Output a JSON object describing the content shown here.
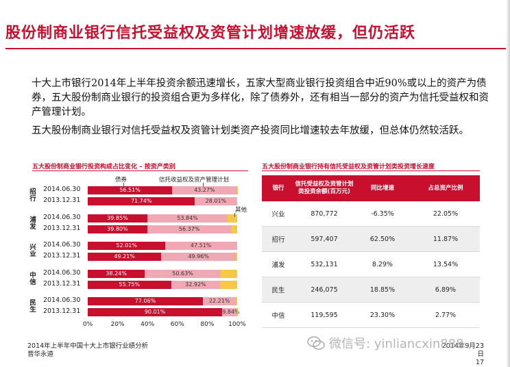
{
  "slide": {
    "title": "股份制商业银行信托受益权及资管计划增速放缓，但仍活跃",
    "paragraph1": "十大上市银行2014年上半年投资余额迅速增长，五家大型商业银行投资组合中近90%或以上的资产为债券，五大股份制商业银行的投资组合更为多样化，除了债券外，还有相当一部分的资产为信托受益权和资产管理计划。",
    "paragraph2": "五大股份制商业银行对信托受益权及资管计划类资产投资同比增速较去年放缓，但总体仍然较活跃。",
    "footer_line1": "2014年上半年中国十大上市银行业绩分析",
    "footer_line2": "普华永道",
    "date": "2014年9月23日",
    "page_number": "17",
    "watermark": "微信号: yinliancxin888"
  },
  "colors": {
    "accent": "#c8102e",
    "debt": "#c8102e",
    "trust": "#f0a8b4",
    "other": "#f7c844"
  },
  "chart_data": {
    "type": "bar",
    "orientation": "horizontal-stacked",
    "title": "五大股份制商业银行投资构成占比变化 – 按资产类别",
    "series_names": [
      "债券",
      "信托收益权及资产管理计划",
      "其他"
    ],
    "xlim": [
      0,
      100
    ],
    "x_ticks": [
      "0%",
      "20%",
      "40%",
      "60%",
      "80%",
      "100%"
    ],
    "groups": [
      {
        "bank": "招行",
        "rows": [
          {
            "date": "2014.06.30",
            "values": [
              56.51,
              43.27,
              0.22
            ],
            "labels": [
              "56.51%",
              "43.27%",
              ""
            ]
          },
          {
            "date": "2013.12.31",
            "values": [
              71.74,
              28.01,
              0.25
            ],
            "labels": [
              "71.74%",
              "28.01%",
              ""
            ]
          }
        ]
      },
      {
        "bank": "浦发",
        "rows": [
          {
            "date": "2014.06.30",
            "values": [
              39.85,
              53.84,
              6.31
            ],
            "labels": [
              "39.85%",
              "53.84%",
              ""
            ]
          },
          {
            "date": "2013.12.31",
            "values": [
              39.8,
              56.37,
              3.83
            ],
            "labels": [
              "39.80%",
              "56.37%",
              ""
            ]
          }
        ]
      },
      {
        "bank": "兴业",
        "rows": [
          {
            "date": "2014.06.30",
            "values": [
              52.01,
              47.51,
              0.48
            ],
            "labels": [
              "52.01%",
              "47.51%",
              ""
            ]
          },
          {
            "date": "2013.12.31",
            "values": [
              49.21,
              49.96,
              0.83
            ],
            "labels": [
              "49.21%",
              "49.96%",
              ""
            ]
          }
        ]
      },
      {
        "bank": "中信",
        "rows": [
          {
            "date": "2014.06.30",
            "values": [
              38.24,
              50.63,
              11.13
            ],
            "labels": [
              "38.24%",
              "50.63%",
              ""
            ]
          },
          {
            "date": "2013.12.31",
            "values": [
              55.75,
              32.92,
              11.33
            ],
            "labels": [
              "55.75%",
              "32.92%",
              ""
            ]
          }
        ]
      },
      {
        "bank": "民生",
        "rows": [
          {
            "date": "2014.06.30",
            "values": [
              77.06,
              22.21,
              0.73
            ],
            "labels": [
              "77.06%",
              "22.21%",
              ""
            ]
          },
          {
            "date": "2013.12.31",
            "values": [
              90.01,
              9.84,
              0.15
            ],
            "labels": [
              "90.01%",
              "9.84%",
              ""
            ]
          }
        ]
      }
    ]
  },
  "table": {
    "title": "五大股份制商业银行持有信托受益权及资管计划类投资增长速度",
    "headers": [
      "银行",
      "信托受益权及资管计划类投资余额(百万元)",
      "同比增速",
      "占总资产比例"
    ],
    "rows": [
      [
        "兴业",
        "870,772",
        "-6.35%",
        "22.05%"
      ],
      [
        "招行",
        "597,407",
        "62.50%",
        "11.87%"
      ],
      [
        "浦发",
        "532,131",
        "8.29%",
        "13.54%"
      ],
      [
        "民生",
        "246,075",
        "18.85%",
        "6.89%"
      ],
      [
        "中信",
        "119,595",
        "23.30%",
        "2.77%"
      ]
    ]
  }
}
